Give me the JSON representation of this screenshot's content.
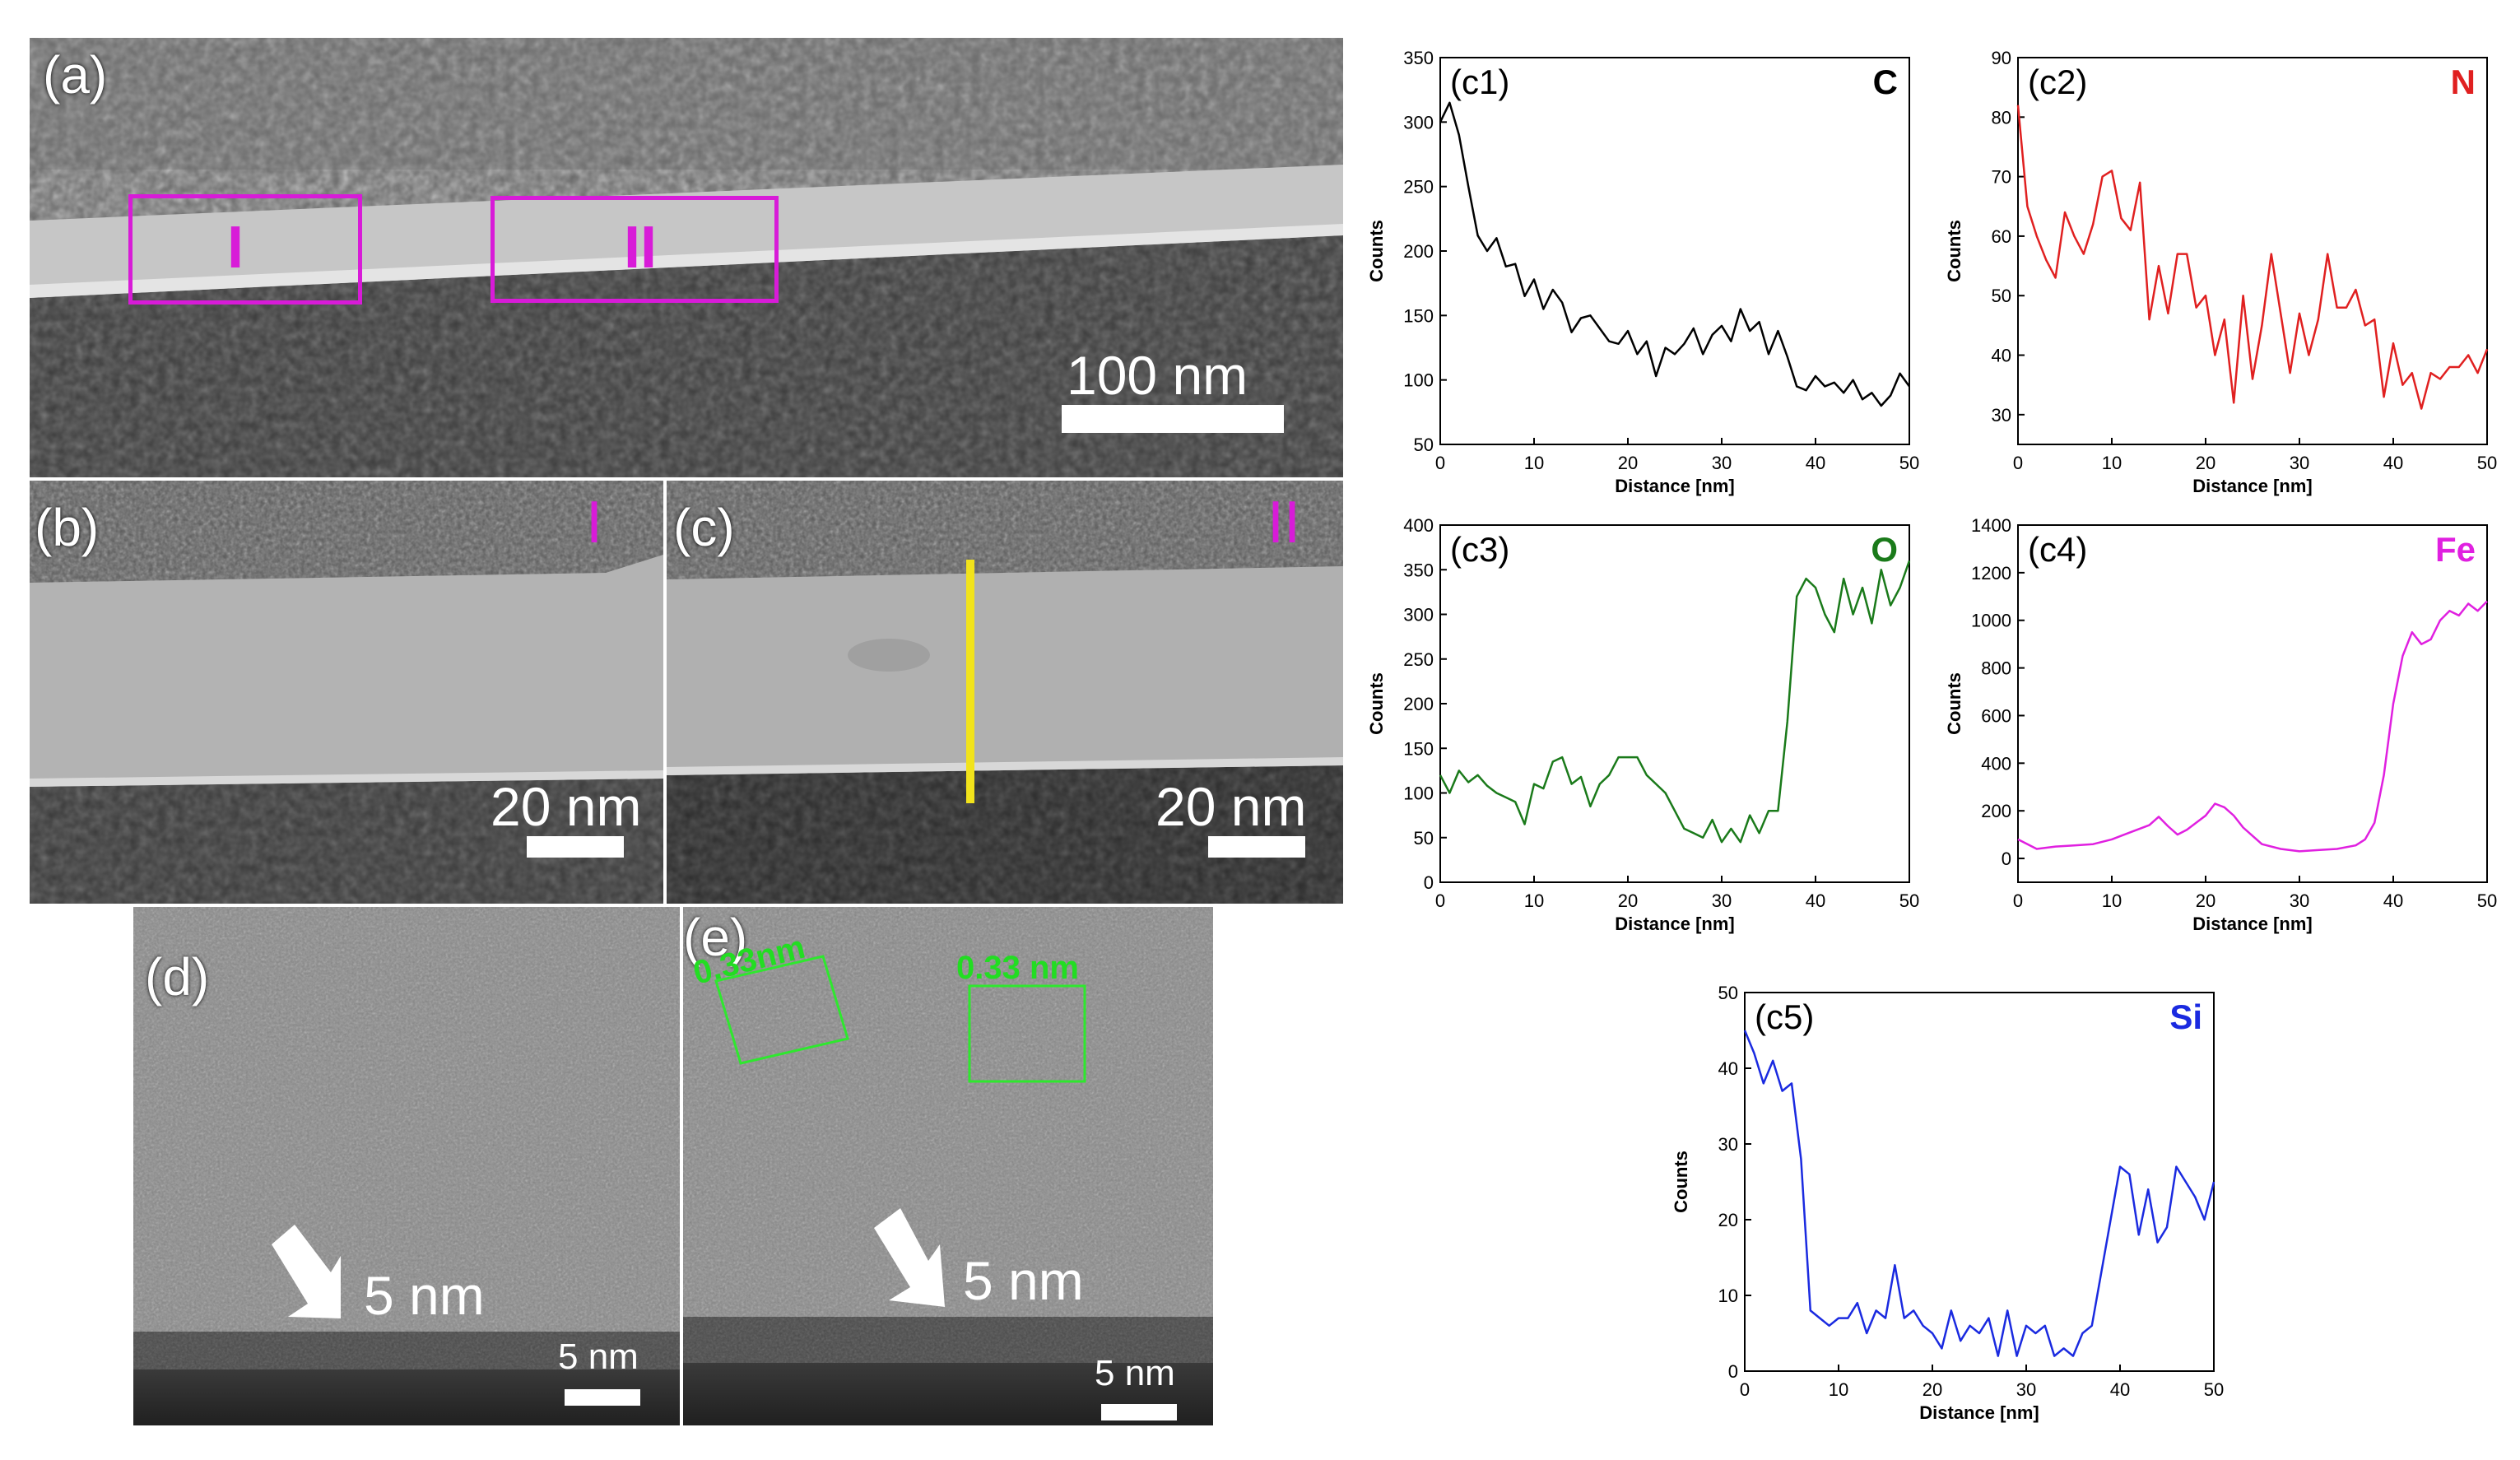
{
  "panel_a": {
    "label": "(a)",
    "region_1": "I",
    "region_2": "II",
    "scale": "100 nm"
  },
  "panel_b": {
    "label": "(b)",
    "region": "I",
    "scale": "20 nm"
  },
  "panel_c": {
    "label": "(c)",
    "region": "II",
    "scale": "20 nm"
  },
  "panel_d": {
    "label": "(d)",
    "arrow_text": "5 nm",
    "scale": "5 nm"
  },
  "panel_e": {
    "label": "(e)",
    "lattice_1": "0.33nm",
    "lattice_2": "0.33 nm",
    "arrow_text": "5 nm",
    "scale": "5 nm"
  },
  "colors": {
    "C": "#000000",
    "N": "#e02020",
    "O": "#1a7a1a",
    "Fe": "#e020e0",
    "Si": "#1a2ae0"
  },
  "chart_data": [
    {
      "id": "c1",
      "type": "line",
      "label": "(c1)",
      "element": "C",
      "xlabel": "Distance [nm]",
      "ylabel": "Counts",
      "xlim": [
        0,
        50
      ],
      "ylim": [
        50,
        350
      ],
      "xticks": [
        0,
        10,
        20,
        30,
        40,
        50
      ],
      "yticks": [
        50,
        100,
        150,
        200,
        250,
        300,
        350
      ],
      "x": [
        0,
        1,
        2,
        3,
        4,
        5,
        6,
        7,
        8,
        9,
        10,
        11,
        12,
        13,
        14,
        15,
        16,
        17,
        18,
        19,
        20,
        21,
        22,
        23,
        24,
        25,
        26,
        27,
        28,
        29,
        30,
        31,
        32,
        33,
        34,
        35,
        36,
        37,
        38,
        39,
        40,
        41,
        42,
        43,
        44,
        45,
        46,
        47,
        48,
        49,
        50
      ],
      "y": [
        300,
        315,
        290,
        250,
        212,
        200,
        210,
        188,
        190,
        165,
        178,
        155,
        170,
        160,
        137,
        148,
        150,
        140,
        130,
        128,
        138,
        120,
        130,
        103,
        125,
        120,
        128,
        140,
        120,
        135,
        142,
        130,
        155,
        138,
        145,
        120,
        138,
        118,
        95,
        92,
        103,
        95,
        98,
        90,
        100,
        85,
        90,
        80,
        88,
        105,
        95
      ]
    },
    {
      "id": "c2",
      "type": "line",
      "label": "(c2)",
      "element": "N",
      "xlabel": "Distance [nm]",
      "ylabel": "Counts",
      "xlim": [
        0,
        50
      ],
      "ylim": [
        25,
        90
      ],
      "xticks": [
        0,
        10,
        20,
        30,
        40,
        50
      ],
      "yticks": [
        30,
        40,
        50,
        60,
        70,
        80,
        90
      ],
      "x": [
        0,
        1,
        2,
        3,
        4,
        5,
        6,
        7,
        8,
        9,
        10,
        11,
        12,
        13,
        14,
        15,
        16,
        17,
        18,
        19,
        20,
        21,
        22,
        23,
        24,
        25,
        26,
        27,
        28,
        29,
        30,
        31,
        32,
        33,
        34,
        35,
        36,
        37,
        38,
        39,
        40,
        41,
        42,
        43,
        44,
        45,
        46,
        47,
        48,
        49,
        50
      ],
      "y": [
        82,
        65,
        60,
        56,
        53,
        64,
        60,
        57,
        62,
        70,
        71,
        63,
        61,
        69,
        46,
        55,
        47,
        57,
        57,
        48,
        50,
        40,
        46,
        32,
        50,
        36,
        45,
        57,
        47,
        37,
        47,
        40,
        46,
        57,
        48,
        48,
        51,
        45,
        46,
        33,
        42,
        35,
        37,
        31,
        37,
        36,
        38,
        38,
        40,
        37,
        41
      ]
    },
    {
      "id": "c3",
      "type": "line",
      "label": "(c3)",
      "element": "O",
      "xlabel": "Distance [nm]",
      "ylabel": "Counts",
      "xlim": [
        0,
        50
      ],
      "ylim": [
        0,
        400
      ],
      "xticks": [
        0,
        10,
        20,
        30,
        40,
        50
      ],
      "yticks": [
        0,
        50,
        100,
        150,
        200,
        250,
        300,
        350,
        400
      ],
      "x": [
        0,
        1,
        2,
        3,
        4,
        5,
        6,
        7,
        8,
        9,
        10,
        11,
        12,
        13,
        14,
        15,
        16,
        17,
        18,
        19,
        20,
        21,
        22,
        23,
        24,
        25,
        26,
        27,
        28,
        29,
        30,
        31,
        32,
        33,
        34,
        35,
        36,
        37,
        38,
        39,
        40,
        41,
        42,
        43,
        44,
        45,
        46,
        47,
        48,
        49,
        50
      ],
      "y": [
        120,
        100,
        125,
        112,
        120,
        108,
        100,
        95,
        90,
        65,
        110,
        105,
        135,
        140,
        110,
        118,
        85,
        110,
        120,
        140,
        140,
        140,
        120,
        110,
        100,
        80,
        60,
        55,
        50,
        70,
        45,
        60,
        45,
        75,
        55,
        80,
        80,
        180,
        320,
        340,
        330,
        300,
        280,
        340,
        300,
        330,
        290,
        350,
        310,
        330,
        360
      ]
    },
    {
      "id": "c4",
      "type": "line",
      "label": "(c4)",
      "element": "Fe",
      "xlabel": "Distance [nm]",
      "ylabel": "Counts",
      "xlim": [
        0,
        50
      ],
      "ylim": [
        -100,
        1400
      ],
      "xticks": [
        0,
        10,
        20,
        30,
        40,
        50
      ],
      "yticks": [
        0,
        200,
        400,
        600,
        800,
        1000,
        1200,
        1400
      ],
      "x": [
        0,
        2,
        4,
        6,
        8,
        10,
        12,
        14,
        15,
        16,
        17,
        18,
        20,
        21,
        22,
        23,
        24,
        26,
        28,
        30,
        32,
        34,
        36,
        37,
        38,
        39,
        40,
        41,
        42,
        43,
        44,
        45,
        46,
        47,
        48,
        49,
        50
      ],
      "y": [
        80,
        40,
        50,
        55,
        60,
        80,
        110,
        140,
        175,
        135,
        100,
        120,
        180,
        230,
        215,
        180,
        130,
        60,
        40,
        30,
        35,
        40,
        55,
        80,
        150,
        350,
        650,
        850,
        950,
        900,
        920,
        1000,
        1040,
        1020,
        1070,
        1040,
        1080
      ]
    },
    {
      "id": "c5",
      "type": "line",
      "label": "(c5)",
      "element": "Si",
      "xlabel": "Distance [nm]",
      "ylabel": "Counts",
      "xlim": [
        0,
        50
      ],
      "ylim": [
        0,
        50
      ],
      "xticks": [
        0,
        10,
        20,
        30,
        40,
        50
      ],
      "yticks": [
        0,
        10,
        20,
        30,
        40,
        50
      ],
      "x": [
        0,
        1,
        2,
        3,
        4,
        5,
        6,
        7,
        8,
        9,
        10,
        11,
        12,
        13,
        14,
        15,
        16,
        17,
        18,
        19,
        20,
        21,
        22,
        23,
        24,
        25,
        26,
        27,
        28,
        29,
        30,
        31,
        32,
        33,
        34,
        35,
        36,
        37,
        38,
        39,
        40,
        41,
        42,
        43,
        44,
        45,
        46,
        47,
        48,
        49,
        50
      ],
      "y": [
        45,
        42,
        38,
        41,
        37,
        38,
        28,
        8,
        7,
        6,
        7,
        7,
        9,
        5,
        8,
        7,
        14,
        7,
        8,
        6,
        5,
        3,
        8,
        4,
        6,
        5,
        7,
        2,
        8,
        2,
        6,
        5,
        6,
        2,
        3,
        2,
        5,
        6,
        13,
        20,
        27,
        26,
        18,
        24,
        17,
        19,
        27,
        25,
        23,
        20,
        25
      ]
    }
  ]
}
